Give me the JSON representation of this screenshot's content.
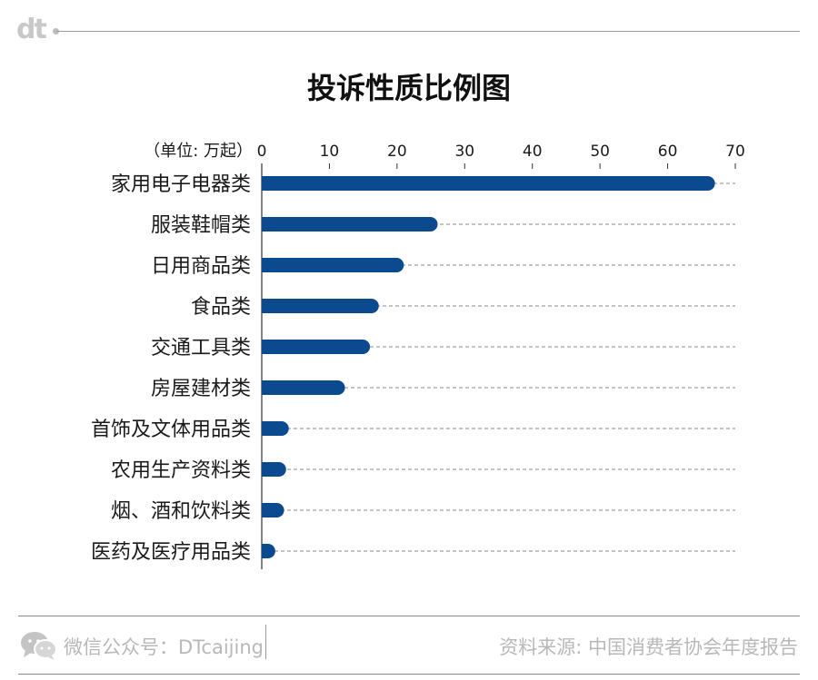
{
  "header": {
    "logo_text": "dt"
  },
  "chart_data": {
    "type": "bar",
    "orientation": "horizontal",
    "title": "投诉性质比例图",
    "unit_label": "（单位: 万起）",
    "categories": [
      "家用电子电器类",
      "服装鞋帽类",
      "日用商品类",
      "食品类",
      "交通工具类",
      "房屋建材类",
      "首饰及文体用品类",
      "农用生产资料类",
      "烟、酒和饮料类",
      "医药及医疗用品类"
    ],
    "values": [
      67,
      26,
      21,
      17.3,
      16,
      12.3,
      4,
      3.6,
      3.3,
      2
    ],
    "xlim": [
      0,
      70
    ],
    "x_ticks": [
      0,
      10,
      20,
      30,
      40,
      50,
      60,
      70
    ],
    "grid": "dashed guides to 70",
    "colors": {
      "bar": "#0c4a90",
      "guide": "#8a8a8a"
    }
  },
  "footer": {
    "wechat_label": "微信公众号：DTcaijing",
    "source": "资料来源: 中国消费者协会年度报告"
  }
}
